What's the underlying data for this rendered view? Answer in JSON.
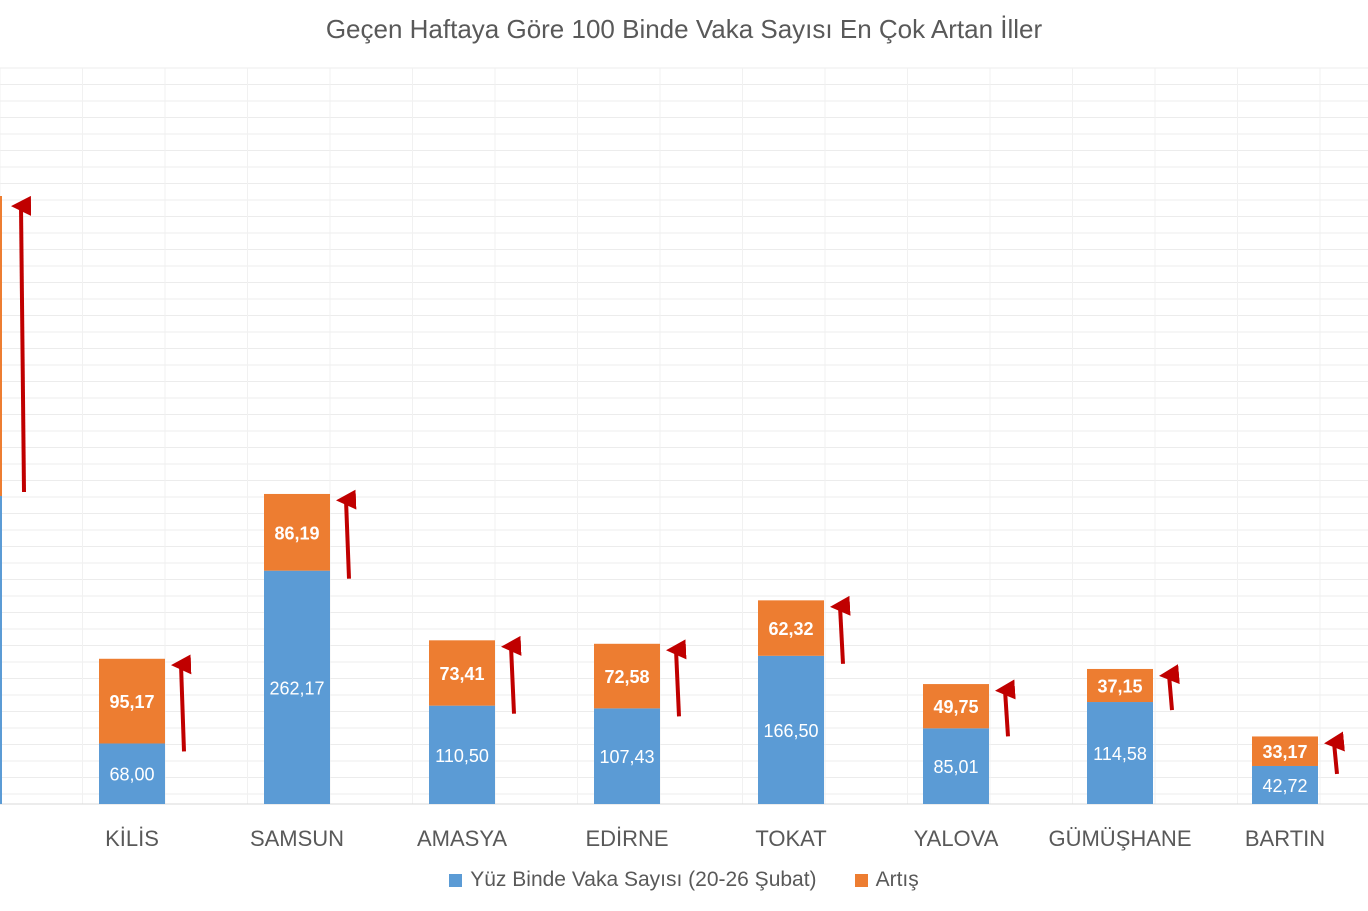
{
  "chart_data": {
    "type": "bar",
    "stacked": true,
    "title": "Geçen Haftaya Göre 100 Binde Vaka Sayısı En Çok Artan İller",
    "categories": [
      "",
      "KİLİS",
      "SAMSUN",
      "AMASYA",
      "EDİRNE",
      "TOKAT",
      "YALOVA",
      "GÜMÜŞHANE",
      "BARTIN"
    ],
    "series": [
      {
        "name": "Yüz Binde Vaka Sayısı (20-26 Şubat)",
        "color": "#5B9BD5",
        "values": [
          null,
          68.0,
          262.17,
          110.5,
          107.43,
          166.5,
          85.01,
          114.58,
          42.72
        ],
        "labels": [
          "",
          "68,00",
          "262,17",
          "110,50",
          "107,43",
          "166,50",
          "85,01",
          "114,58",
          "42,72"
        ]
      },
      {
        "name": "Artış",
        "color": "#ED7D31",
        "values": [
          null,
          95.17,
          86.19,
          73.41,
          72.58,
          62.32,
          49.75,
          37.15,
          33.17
        ],
        "labels": [
          "",
          "95,17",
          "86,19",
          "73,41",
          "72,58",
          "62,32",
          "49,75",
          "37,15",
          "33,17"
        ]
      }
    ],
    "ylim": [
      0,
      400
    ],
    "grid": true,
    "legend_position": "bottom",
    "annotations": "red upward arrows beside each increase segment",
    "arrow_color": "#C00000"
  }
}
